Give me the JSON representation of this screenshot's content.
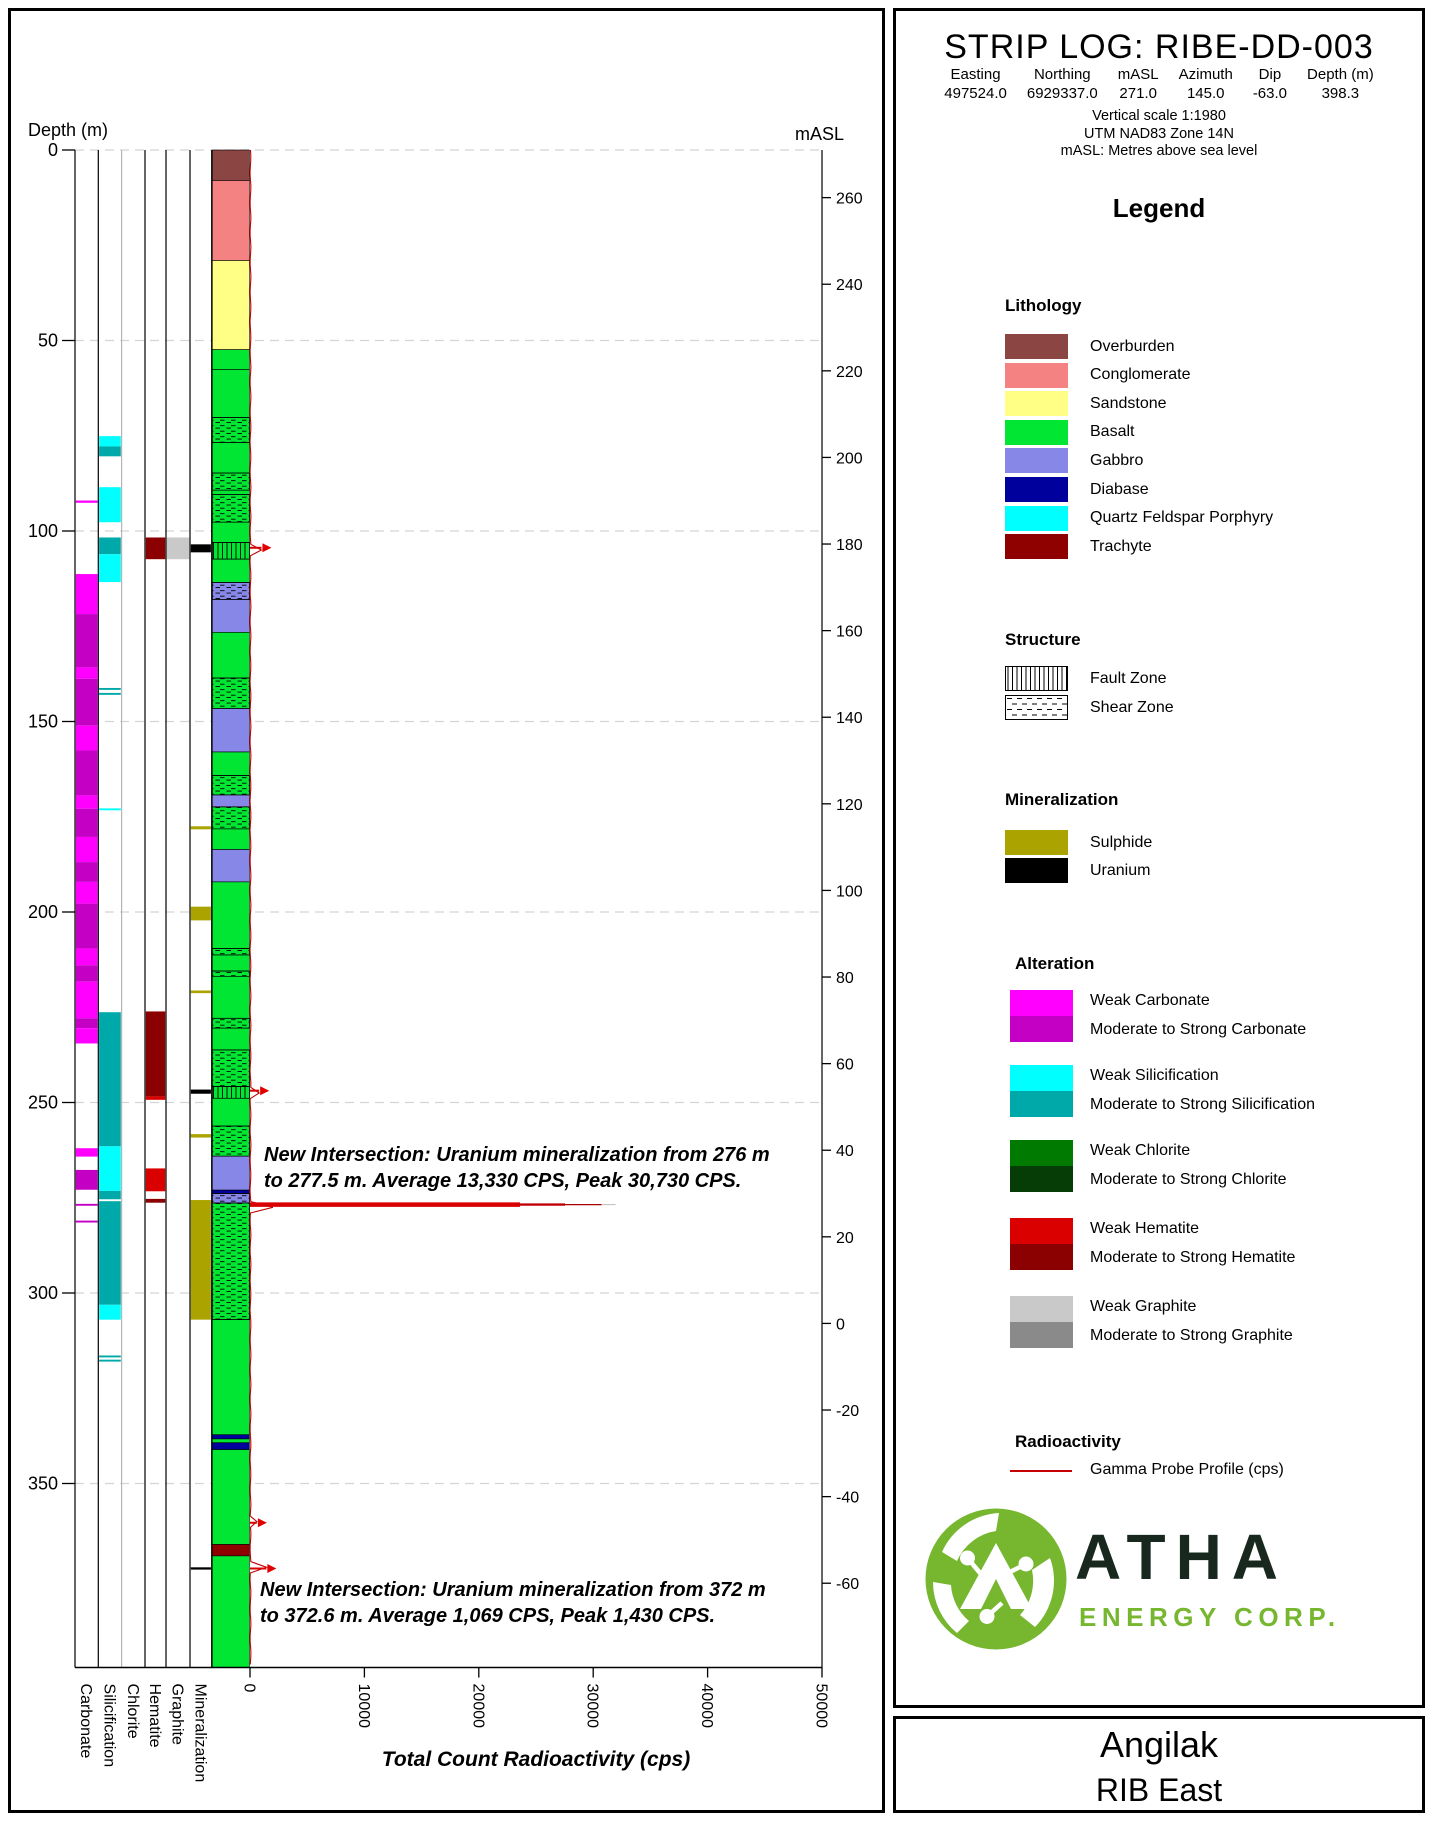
{
  "title_block": {
    "title": "STRIP LOG: RIBE-DD-003",
    "fields": [
      {
        "label": "Easting",
        "value": "497524.0"
      },
      {
        "label": "Northing",
        "value": "6929337.0"
      },
      {
        "label": "mASL",
        "value": "271.0"
      },
      {
        "label": "Azimuth",
        "value": "145.0"
      },
      {
        "label": "Dip",
        "value": "-63.0"
      },
      {
        "label": "Depth (m)",
        "value": "398.3"
      }
    ],
    "notes": [
      "Vertical scale 1:1980",
      "UTM NAD83 Zone 14N",
      "mASL: Metres above sea level"
    ]
  },
  "legend": {
    "title": "Legend",
    "lithology": {
      "header": "Lithology",
      "items": [
        {
          "label": "Overburden",
          "color": "#8B4543"
        },
        {
          "label": "Conglomerate",
          "color": "#F58282"
        },
        {
          "label": "Sandstone",
          "color": "#FFFF85"
        },
        {
          "label": "Basalt",
          "color": "#00E632"
        },
        {
          "label": "Gabbro",
          "color": "#8787E8"
        },
        {
          "label": "Diabase",
          "color": "#00009C"
        },
        {
          "label": "Quartz Feldspar Porphyry",
          "color": "#00FFFF"
        },
        {
          "label": "Trachyte",
          "color": "#8F0000"
        }
      ]
    },
    "structure": {
      "header": "Structure",
      "items": [
        {
          "label": "Fault Zone",
          "pattern": "fault"
        },
        {
          "label": "Shear Zone",
          "pattern": "shear"
        }
      ]
    },
    "mineralization": {
      "header": "Mineralization",
      "items": [
        {
          "label": "Sulphide",
          "color": "#ABA400"
        },
        {
          "label": "Uranium",
          "color": "#000000"
        }
      ]
    },
    "alteration": {
      "header": "Alteration",
      "pairs": [
        {
          "id": "carbonate",
          "weak": "Weak Carbonate",
          "strong": "Moderate to Strong Carbonate"
        },
        {
          "id": "silicification",
          "weak": "Weak Silicification",
          "strong": "Moderate to Strong Silicification"
        },
        {
          "id": "chlorite",
          "weak": "Weak Chlorite",
          "strong": "Moderate to Strong Chlorite"
        },
        {
          "id": "hematite",
          "weak": "Weak Hematite",
          "strong": "Moderate to Strong Hematite"
        },
        {
          "id": "graphite",
          "weak": "Weak Graphite",
          "strong": "Moderate to Strong Graphite"
        }
      ]
    },
    "radioactivity": {
      "header": "Radioactivity",
      "item": "Gamma Probe Profile (cps)",
      "color": "#C40000"
    }
  },
  "brand": {
    "name": "ATHA",
    "sub": "ENERGY CORP.",
    "green": "#76B72F"
  },
  "footer": {
    "project": "Angilak",
    "area": "RIB East"
  },
  "chart_data": {
    "type": "strip-log",
    "title": "STRIP LOG: RIBE-DD-003",
    "depth_axis": {
      "label": "Depth (m)",
      "ticks": [
        0,
        50,
        100,
        150,
        200,
        250,
        300,
        350
      ],
      "max_depth": 398.3
    },
    "masl_axis": {
      "label": "mASL",
      "surface_elevation": 271,
      "ticks": [
        260,
        240,
        220,
        200,
        180,
        160,
        140,
        120,
        100,
        80,
        60,
        40,
        20,
        0,
        -20,
        -40,
        -60
      ]
    },
    "gamma_axis": {
      "label": "Total Count Radioactivity (cps)",
      "ticks": [
        0,
        10000,
        20000,
        30000,
        40000,
        50000
      ],
      "max": 50000
    },
    "columns": [
      {
        "id": "carbonate",
        "label": "Carbonate"
      },
      {
        "id": "silicification",
        "label": "Silicification"
      },
      {
        "id": "chlorite",
        "label": "Chlorite"
      },
      {
        "id": "hematite",
        "label": "Hematite"
      },
      {
        "id": "graphite",
        "label": "Graphite"
      },
      {
        "id": "mineralization",
        "label": "Mineralization"
      }
    ],
    "lithology_colors": {
      "overburden": "#8B4543",
      "conglomerate": "#F58282",
      "sandstone": "#FFFF85",
      "basalt": "#00E632",
      "gabbro": "#8787E8",
      "diabase": "#00009C",
      "qfp": "#00FFFF",
      "trachyte": "#8F0000"
    },
    "alteration_colors": {
      "carbonate": {
        "weak": "#FF00FF",
        "strong": "#C400C4"
      },
      "silicification": {
        "weak": "#00FFFF",
        "strong": "#00A9A9"
      },
      "chlorite": {
        "weak": "#007A00",
        "strong": "#063D06"
      },
      "hematite": {
        "weak": "#DB0000",
        "strong": "#8B0000"
      },
      "graphite": {
        "weak": "#C9C9C9",
        "strong": "#8A8A8A"
      }
    },
    "mineralization_colors": {
      "sulphide": "#ABA400",
      "uranium": "#000000"
    },
    "lithology_intervals": [
      [
        0,
        8,
        "overburden",
        ""
      ],
      [
        8,
        29,
        "conglomerate",
        ""
      ],
      [
        29,
        52.4,
        "sandstone",
        ""
      ],
      [
        52.4,
        57.6,
        "basalt",
        ""
      ],
      [
        57.6,
        70.2,
        "basalt",
        ""
      ],
      [
        70.2,
        76.8,
        "basalt",
        "shear"
      ],
      [
        76.8,
        84.8,
        "basalt",
        ""
      ],
      [
        84.8,
        89.3,
        "basalt",
        "shear"
      ],
      [
        89.3,
        90.4,
        "basalt",
        ""
      ],
      [
        90.4,
        97.7,
        "basalt",
        "shear"
      ],
      [
        97.7,
        103,
        "basalt",
        ""
      ],
      [
        103,
        107.4,
        "basalt",
        "fault"
      ],
      [
        107.4,
        113.5,
        "basalt",
        ""
      ],
      [
        113.5,
        118,
        "gabbro",
        "shear"
      ],
      [
        118,
        126.6,
        "gabbro",
        ""
      ],
      [
        126.6,
        138.6,
        "basalt",
        ""
      ],
      [
        138.6,
        146.6,
        "basalt",
        "shear"
      ],
      [
        146.6,
        158,
        "gabbro",
        ""
      ],
      [
        158,
        164.2,
        "basalt",
        ""
      ],
      [
        164.2,
        169.3,
        "basalt",
        "shear"
      ],
      [
        169.3,
        172.4,
        "gabbro",
        ""
      ],
      [
        172.4,
        178.2,
        "basalt",
        "shear"
      ],
      [
        178.2,
        183.6,
        "basalt",
        ""
      ],
      [
        183.6,
        192.1,
        "gabbro",
        ""
      ],
      [
        192.1,
        209.6,
        "basalt",
        ""
      ],
      [
        209.6,
        211.3,
        "basalt",
        "shear"
      ],
      [
        211.3,
        215.5,
        "basalt",
        ""
      ],
      [
        215.5,
        216.9,
        "basalt",
        "shear"
      ],
      [
        216.9,
        227.9,
        "basalt",
        ""
      ],
      [
        227.9,
        230.5,
        "basalt",
        "shear"
      ],
      [
        230.5,
        236.2,
        "basalt",
        ""
      ],
      [
        236.2,
        245.8,
        "basalt",
        "shear"
      ],
      [
        245.8,
        248.9,
        "basalt",
        "fault"
      ],
      [
        248.9,
        256.2,
        "basalt",
        ""
      ],
      [
        256.2,
        264.1,
        "basalt",
        "shear"
      ],
      [
        264.1,
        273,
        "gabbro",
        ""
      ],
      [
        273,
        273.9,
        "diabase",
        ""
      ],
      [
        273.9,
        276.4,
        "gabbro",
        "shear"
      ],
      [
        276.4,
        307,
        "basalt",
        "shear"
      ],
      [
        307,
        337.2,
        "basalt",
        ""
      ],
      [
        337.2,
        338.3,
        "diabase",
        ""
      ],
      [
        338.3,
        339.3,
        "basalt",
        ""
      ],
      [
        339.3,
        341.1,
        "diabase",
        ""
      ],
      [
        341.1,
        366,
        "basalt",
        ""
      ],
      [
        366,
        369,
        "trachyte",
        ""
      ],
      [
        369,
        398.3,
        "basalt",
        ""
      ]
    ],
    "alteration_intervals": {
      "carbonate": [
        [
          92,
          92.6,
          "weak"
        ],
        [
          111.3,
          121.8,
          "weak"
        ],
        [
          121.8,
          135.8,
          "strong"
        ],
        [
          135.8,
          138.8,
          "weak"
        ],
        [
          138.8,
          151.1,
          "strong"
        ],
        [
          151.1,
          157.6,
          "weak"
        ],
        [
          157.6,
          169.4,
          "strong"
        ],
        [
          169.4,
          172.9,
          "weak"
        ],
        [
          172.9,
          180.3,
          "strong"
        ],
        [
          180.3,
          186.9,
          "weak"
        ],
        [
          186.9,
          192.1,
          "strong"
        ],
        [
          192.1,
          197.8,
          "weak"
        ],
        [
          197.8,
          209.6,
          "strong"
        ],
        [
          209.6,
          214,
          "weak"
        ],
        [
          214,
          218.3,
          "strong"
        ],
        [
          218.3,
          227.9,
          "weak"
        ],
        [
          227.9,
          230.5,
          "strong"
        ],
        [
          230.5,
          234.5,
          "weak"
        ],
        [
          262,
          264.2,
          "weak"
        ],
        [
          267.7,
          272.9,
          "strong"
        ],
        [
          276.6,
          277.1,
          "strong"
        ],
        [
          281,
          281.5,
          "strong"
        ]
      ],
      "silicification": [
        [
          75.1,
          77.8,
          "weak"
        ],
        [
          77.8,
          80.4,
          "strong"
        ],
        [
          88.5,
          97.7,
          "weak"
        ],
        [
          101.7,
          106.1,
          "strong"
        ],
        [
          106.1,
          113.4,
          "weak"
        ],
        [
          141.2,
          141.7,
          "strong"
        ],
        [
          142.5,
          143,
          "strong"
        ],
        [
          172.8,
          173.3,
          "weak"
        ],
        [
          226.3,
          261.5,
          "strong"
        ],
        [
          261.5,
          273.2,
          "weak"
        ],
        [
          273.2,
          275.4,
          "strong"
        ],
        [
          275.9,
          303.1,
          "strong"
        ],
        [
          303.1,
          307,
          "weak"
        ],
        [
          316.4,
          316.9,
          "strong"
        ],
        [
          317.5,
          318,
          "strong"
        ]
      ],
      "chlorite": [],
      "hematite": [
        [
          101.7,
          107.4,
          "strong"
        ],
        [
          226.1,
          248.4,
          "strong"
        ],
        [
          248.4,
          249.3,
          "weak"
        ],
        [
          267.3,
          273.3,
          "weak"
        ],
        [
          275.3,
          276.3,
          "strong"
        ]
      ],
      "graphite": [
        [
          101.7,
          107.4,
          "weak"
        ]
      ]
    },
    "mineralization_intervals": [
      [
        103.5,
        105.6,
        "uranium"
      ],
      [
        177.5,
        178.3,
        "sulphide"
      ],
      [
        198.6,
        202.2,
        "sulphide"
      ],
      [
        220.6,
        221.3,
        "sulphide"
      ],
      [
        246.6,
        247.7,
        "uranium"
      ],
      [
        258.3,
        259.2,
        "sulphide"
      ],
      [
        275.6,
        307,
        "sulphide"
      ],
      [
        372,
        372.6,
        "uranium"
      ]
    ],
    "gamma_profile": {
      "color": "#C40000",
      "baseline_cps": 80,
      "spikes": [
        {
          "depth": 104.4,
          "cps": 1000
        },
        {
          "depth": 246.9,
          "cps": 800
        },
        {
          "depth": 276.8,
          "cps": 30730
        },
        {
          "depth": 360.3,
          "cps": 600
        },
        {
          "depth": 372.3,
          "cps": 1430
        }
      ]
    },
    "annotations": [
      {
        "depth": 276.8,
        "text": "New Intersection: Uranium mineralization from 276 m\nto 277.5 m. Average 13,330 CPS, Peak 30,730 CPS."
      },
      {
        "depth": 372.3,
        "text": "New Intersection: Uranium mineralization from 372 m\nto 372.6 m. Average 1,069 CPS, Peak 1,430 CPS."
      }
    ]
  }
}
